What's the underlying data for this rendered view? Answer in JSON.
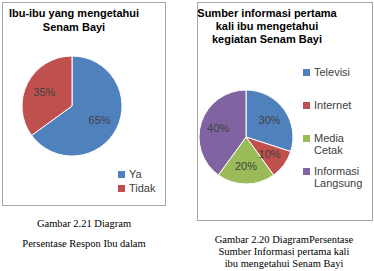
{
  "chart_data": [
    {
      "type": "pie",
      "title": "Ibu-ibu yang mengetahui\nSenam Bayi",
      "categories": [
        "Ya",
        "Tidak"
      ],
      "values": [
        65,
        35
      ],
      "value_labels": [
        "65%",
        "35%"
      ],
      "colors": [
        "#4f81bd",
        "#c0504d"
      ],
      "data_labels": true,
      "legend": "bottom-right",
      "caption": "Gambar 2.21 Diagram\nPersentase Respon Ibu dalam"
    },
    {
      "type": "pie",
      "title": "Sumber informasi pertama\nkali ibu mengetahui\nkegiatan Senam Bayi",
      "categories": [
        "Televisi",
        "Internet",
        "Media Cetak",
        "Informasi Langsung"
      ],
      "values": [
        30,
        10,
        20,
        40
      ],
      "value_labels": [
        "30%",
        "10%",
        "20%",
        "40%"
      ],
      "colors": [
        "#4f81bd",
        "#c0504d",
        "#9bbb59",
        "#8064a2"
      ],
      "data_labels": true,
      "legend": "right",
      "caption": "Gambar 2.20 DiagramPersentase\nSumber Informasi pertama kali\nibu mengetahui Senam Bayi"
    }
  ]
}
